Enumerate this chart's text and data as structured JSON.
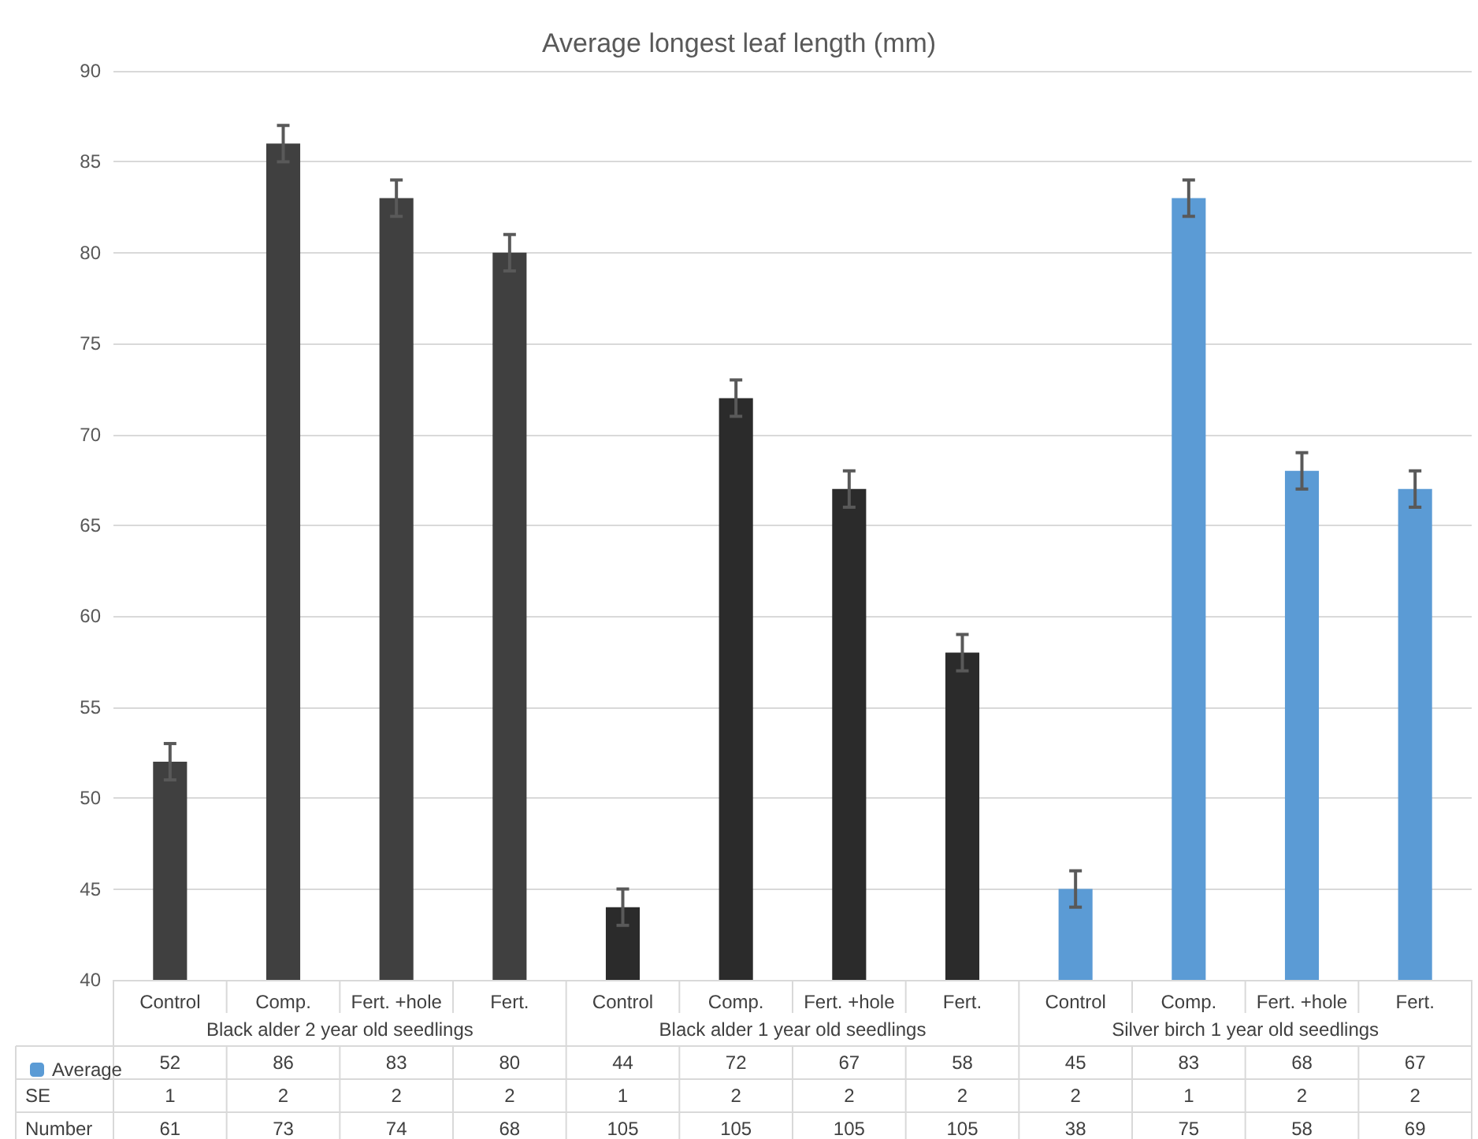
{
  "chart_data": {
    "type": "bar",
    "title": "Average longest leaf length (mm)",
    "categories": [
      "Control",
      "Comp.",
      "Fert. +hole",
      "Fert.",
      "Control",
      "Comp.",
      "Fert. +hole",
      "Fert.",
      "Control",
      "Comp.",
      "Fert. +hole",
      "Fert."
    ],
    "series": [
      {
        "name": "Average",
        "colors": [
          "#404040",
          "#404040",
          "#404040",
          "#404040",
          "#2b2b2b",
          "#2b2b2b",
          "#2b2b2b",
          "#2b2b2b",
          "#5b9bd5",
          "#5b9bd5",
          "#5b9bd5",
          "#5b9bd5"
        ],
        "values": [
          52,
          86,
          83,
          80,
          44,
          72,
          67,
          58,
          45,
          83,
          68,
          67
        ],
        "errors": [
          1,
          1,
          1,
          1,
          1,
          1,
          1,
          1,
          1,
          1,
          1,
          1
        ]
      }
    ],
    "data_labels": true,
    "ylim": [
      40,
      90
    ],
    "yticks": [
      40,
      45,
      50,
      55,
      60,
      65,
      70,
      75,
      80,
      85,
      90
    ],
    "grid": "y",
    "legend": "bottom left",
    "annotations": [
      "Black alder 2 year old seedlings",
      "Black alder 1 year old seedlings",
      "Silver birch 1 year old seedlings",
      "SE",
      "1",
      "2",
      "2",
      "2",
      "1",
      "2",
      "2",
      "2",
      "2",
      "1",
      "2",
      "2",
      "Number",
      "61",
      "73",
      "74",
      "68",
      "105",
      "105",
      "105",
      "105",
      "38",
      "75",
      "58",
      "69"
    ]
  }
}
